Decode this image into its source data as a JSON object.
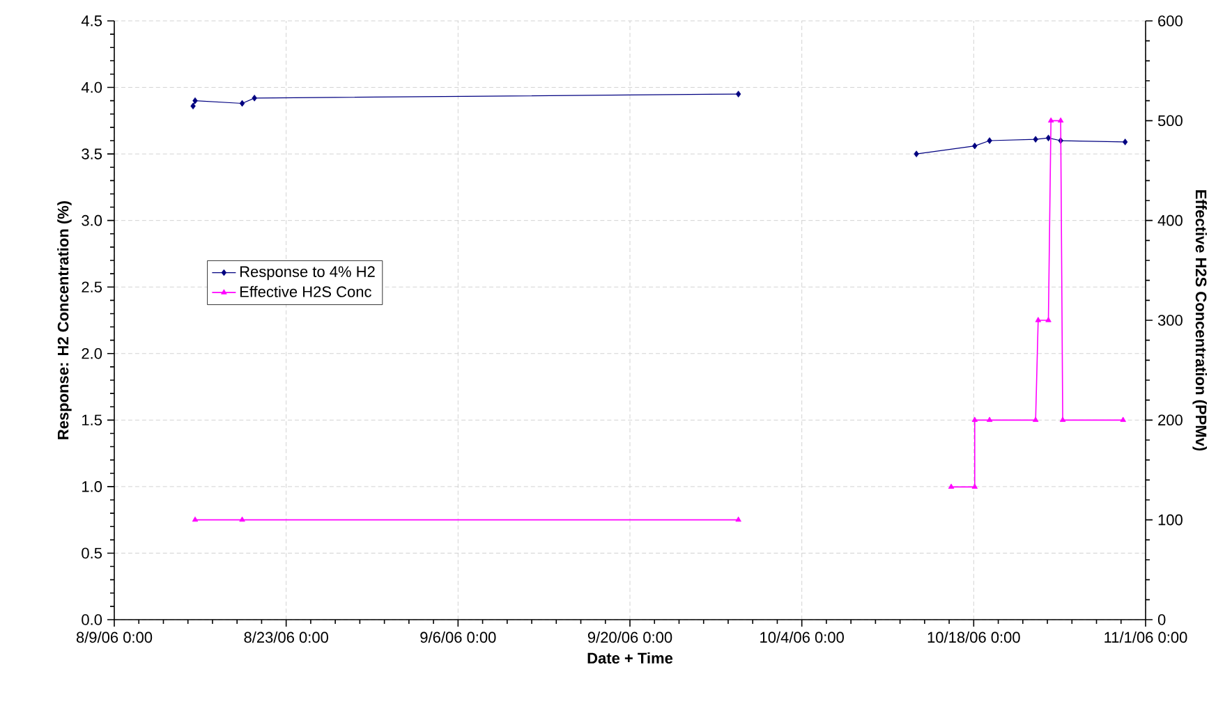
{
  "chart_data": {
    "type": "line",
    "xlabel": "Date + Time",
    "ylabel": "Response: H2 Concentration (%)",
    "y2label": "Effective H2S Concentration (PPMv)",
    "xlim": [
      "2006-08-09",
      "2006-11-01"
    ],
    "xticks": [
      {
        "value": "2006-08-09",
        "label": "8/9/06 0:00"
      },
      {
        "value": "2006-08-23",
        "label": "8/23/06 0:00"
      },
      {
        "value": "2006-09-06",
        "label": "9/6/06 0:00"
      },
      {
        "value": "2006-09-20",
        "label": "9/20/06 0:00"
      },
      {
        "value": "2006-10-04",
        "label": "10/4/06 0:00"
      },
      {
        "value": "2006-10-18",
        "label": "10/18/06 0:00"
      },
      {
        "value": "2006-11-01",
        "label": "11/1/06 0:00"
      }
    ],
    "ylim": [
      0,
      4.5
    ],
    "yticks": [
      {
        "value": 0,
        "label": "0.0"
      },
      0.5,
      {
        "value": 1,
        "label": "1.0"
      },
      1.5,
      {
        "value": 2,
        "label": "2.0"
      },
      2.5,
      {
        "value": 3,
        "label": "3.0"
      },
      3.5,
      {
        "value": 4,
        "label": "4.0"
      },
      4.5
    ],
    "y2lim": [
      0,
      600
    ],
    "y2ticks": [
      0,
      100,
      200,
      300,
      400,
      500,
      600
    ],
    "grid": true,
    "legend": "left",
    "series": [
      {
        "name": "Response to 4% H2",
        "color": "#000080",
        "marker": "diamond",
        "x": [
          "2006-08-15T10:00",
          "2006-08-15T14:00",
          "2006-08-19T10:00",
          "2006-08-20T10:00",
          "2006-09-28T20:00",
          "2006-10-05T00:00",
          "2006-10-13T08:00",
          "2006-10-18T02:00",
          "2006-10-19T07:00",
          "2006-10-23T01:00",
          "2006-10-24T02:00",
          "2006-10-25T02:00",
          "2006-10-30T08:00"
        ],
        "values": [
          3.86,
          3.9,
          3.88,
          3.92,
          3.95,
          null,
          3.5,
          3.56,
          3.6,
          3.61,
          3.62,
          3.6,
          3.59
        ]
      },
      {
        "name": "Effective H2S Conc",
        "color": "#ff00ff",
        "marker": "triangle",
        "axis": "y2",
        "x": [
          "2006-08-15T14:00",
          "2006-08-19T10:00",
          "2006-09-28T20:00",
          "2006-10-05T00:00",
          "2006-10-16T04:00",
          "2006-10-18T02:00",
          "2006-10-18T02:00",
          "2006-10-19T07:00",
          "2006-10-23T01:00",
          "2006-10-23T06:00",
          "2006-10-24T02:00",
          "2006-10-24T07:00",
          "2006-10-25T02:00",
          "2006-10-25T06:00",
          "2006-10-30T04:00"
        ],
        "values": [
          100,
          100,
          100,
          null,
          133,
          133,
          200,
          200,
          200,
          300,
          300,
          500,
          500,
          200,
          200
        ]
      }
    ]
  }
}
